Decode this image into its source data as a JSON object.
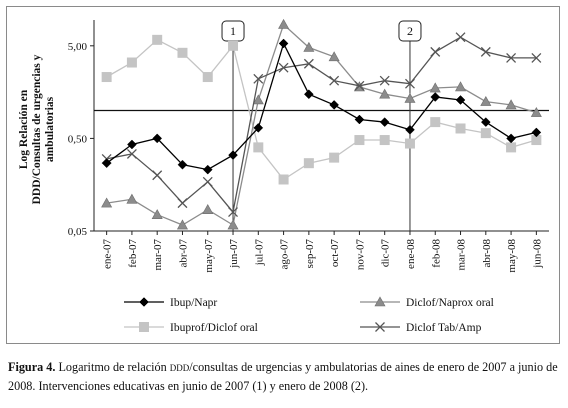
{
  "chart_data": {
    "type": "line",
    "ylabel_lines": [
      "Log Relación en",
      "DDD/Consultas de urgencias y",
      "ambulatorias"
    ],
    "y_scale": "log",
    "ylim": [
      0.05,
      9.5
    ],
    "y_ticks": [
      {
        "value": 0.05,
        "label": "0,05"
      },
      {
        "value": 0.5,
        "label": "0,50"
      },
      {
        "value": 5.0,
        "label": "5,00"
      }
    ],
    "reference_line_value": 1.0,
    "grid": false,
    "categories": [
      "ene-07",
      "feb-07",
      "mar-07",
      "abr-07",
      "may-07",
      "jun-07",
      "jul-07",
      "ago-07",
      "sep-07",
      "oct-07",
      "nov-07",
      "dic-07",
      "ene-08",
      "feb-08",
      "mar-08",
      "abr-08",
      "may-08",
      "jun-08"
    ],
    "interventions": [
      {
        "label": "1",
        "category": "jun-07"
      },
      {
        "label": "2",
        "category": "ene-08"
      }
    ],
    "series": [
      {
        "name": "Ibup/Napr",
        "color": "#000000",
        "marker": "diamond",
        "values": [
          0.27,
          0.43,
          0.5,
          0.26,
          0.23,
          0.33,
          0.65,
          5.3,
          1.5,
          1.15,
          0.8,
          0.75,
          0.62,
          1.4,
          1.3,
          0.75,
          0.5,
          0.58
        ]
      },
      {
        "name": "Diclof/Naprox oral",
        "color": "#8c8c8c",
        "marker": "triangle",
        "values": [
          0.1,
          0.11,
          0.075,
          0.058,
          0.085,
          0.058,
          1.3,
          8.5,
          4.8,
          3.8,
          1.8,
          1.5,
          1.35,
          1.75,
          1.8,
          1.25,
          1.15,
          0.95
        ]
      },
      {
        "name": "Ibuprof/Diclof oral",
        "color": "#c4c4c4",
        "marker": "square",
        "values": [
          2.3,
          3.3,
          5.8,
          4.2,
          2.3,
          5.0,
          0.4,
          0.18,
          0.27,
          0.31,
          0.48,
          0.48,
          0.44,
          0.75,
          0.64,
          0.57,
          0.4,
          0.48
        ]
      },
      {
        "name": "Diclof Tab/Amp",
        "color": "#555555",
        "marker": "x",
        "values": [
          0.3,
          0.34,
          0.2,
          0.1,
          0.17,
          0.08,
          2.2,
          2.9,
          3.2,
          2.1,
          1.85,
          2.1,
          1.95,
          4.3,
          6.2,
          4.3,
          3.7,
          3.7
        ]
      }
    ],
    "legend_position": "bottom"
  },
  "caption": {
    "label": "Figura 4.",
    "text_before": " Logaritmo de relación ",
    "ddd": "ddd",
    "text_after": "/consultas de urgencias y ambulatorias de aines de enero de 2007 a junio de 2008. Intervenciones educativas en junio de 2007 (1) y enero de 2008 (2)."
  }
}
